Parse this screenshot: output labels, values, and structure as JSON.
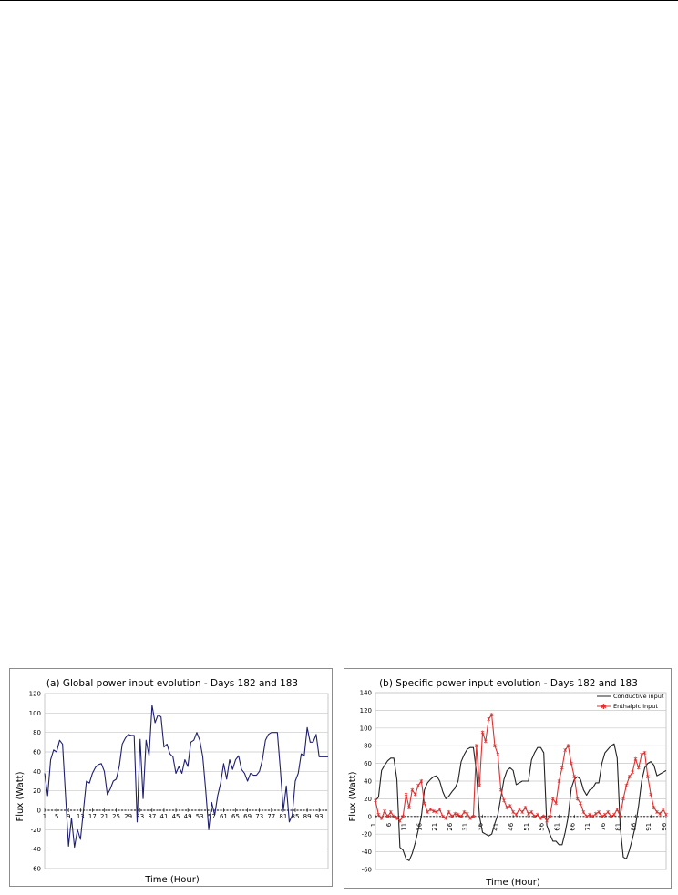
{
  "chart_data": [
    {
      "type": "line",
      "title": "(a) Global power input evolution - Days 182 and 183",
      "xlabel": "Time (Hour)",
      "ylabel": "Flux (Watt)",
      "ylim": [
        -60,
        120
      ],
      "yticks": [
        -60,
        -40,
        -20,
        0,
        20,
        40,
        60,
        80,
        100,
        120
      ],
      "xticks": [
        1,
        5,
        9,
        13,
        17,
        21,
        25,
        29,
        33,
        37,
        41,
        45,
        49,
        53,
        57,
        61,
        65,
        69,
        73,
        77,
        81,
        85,
        89,
        93
      ],
      "xlim": [
        1,
        96
      ],
      "grid": true,
      "color": "#1f1f70",
      "series": [
        {
          "values": [
            38,
            15,
            52,
            62,
            60,
            72,
            68,
            15,
            -37,
            -8,
            -38,
            -20,
            -30,
            0,
            30,
            28,
            38,
            44,
            47,
            48,
            40,
            16,
            22,
            30,
            32,
            45,
            68,
            74,
            78,
            77,
            77,
            -12,
            73,
            12,
            72,
            56,
            108,
            90,
            98,
            96,
            65,
            68,
            58,
            55,
            38,
            45,
            38,
            52,
            45,
            70,
            72,
            80,
            72,
            55,
            20,
            -20,
            8,
            -5,
            15,
            28,
            48,
            32,
            52,
            42,
            52,
            56,
            42,
            38,
            30,
            38,
            36,
            36,
            40,
            52,
            72,
            78,
            80,
            80,
            80,
            42,
            0,
            25,
            -12,
            -5,
            30,
            38,
            58,
            56,
            85,
            70,
            70,
            78,
            55,
            55,
            55,
            55
          ]
        }
      ]
    },
    {
      "type": "line",
      "title": "(b) Specific power input evolution - Days 182 and 183",
      "xlabel": "Time (Hour)",
      "ylabel": "Flux (Watt)",
      "ylim": [
        -60,
        140
      ],
      "yticks": [
        -60,
        -40,
        -20,
        0,
        20,
        40,
        60,
        80,
        100,
        120,
        140
      ],
      "xticks": [
        1,
        6,
        11,
        16,
        21,
        26,
        31,
        36,
        41,
        46,
        51,
        56,
        61,
        66,
        71,
        76,
        81,
        86,
        91,
        96
      ],
      "xlim": [
        1,
        96
      ],
      "grid": true,
      "legend": "top-right",
      "series": [
        {
          "name": "Conductive input",
          "color": "#222222",
          "values": [
            18,
            22,
            52,
            58,
            63,
            66,
            66,
            42,
            -35,
            -38,
            -48,
            -50,
            -42,
            -30,
            -15,
            0,
            30,
            38,
            42,
            45,
            46,
            40,
            28,
            20,
            23,
            28,
            32,
            40,
            62,
            70,
            76,
            78,
            78,
            50,
            0,
            -18,
            -20,
            -22,
            -20,
            -8,
            2,
            22,
            42,
            52,
            55,
            52,
            36,
            38,
            40,
            40,
            40,
            64,
            72,
            78,
            78,
            72,
            -10,
            -20,
            -28,
            -28,
            -32,
            -32,
            -18,
            0,
            32,
            42,
            45,
            42,
            30,
            24,
            30,
            32,
            38,
            38,
            60,
            72,
            76,
            80,
            82,
            66,
            -12,
            -46,
            -48,
            -38,
            -25,
            -10,
            12,
            40,
            55,
            60,
            62,
            58,
            46,
            48,
            50,
            52
          ]
        },
        {
          "name": "Enthalpic input",
          "color": "#e03030",
          "values": [
            18,
            2,
            -2,
            6,
            0,
            5,
            0,
            -2,
            -5,
            0,
            25,
            10,
            30,
            25,
            35,
            40,
            15,
            5,
            8,
            6,
            5,
            8,
            0,
            -2,
            5,
            0,
            3,
            2,
            0,
            5,
            3,
            -2,
            0,
            80,
            35,
            95,
            85,
            110,
            115,
            80,
            70,
            30,
            18,
            10,
            12,
            5,
            2,
            8,
            5,
            10,
            3,
            5,
            0,
            2,
            -2,
            0,
            -5,
            0,
            20,
            15,
            40,
            55,
            75,
            80,
            60,
            45,
            20,
            15,
            5,
            0,
            2,
            0,
            3,
            5,
            0,
            2,
            5,
            0,
            2,
            8,
            0,
            20,
            35,
            45,
            50,
            65,
            55,
            70,
            72,
            45,
            25,
            10,
            5,
            3,
            8,
            2
          ]
        }
      ]
    }
  ]
}
